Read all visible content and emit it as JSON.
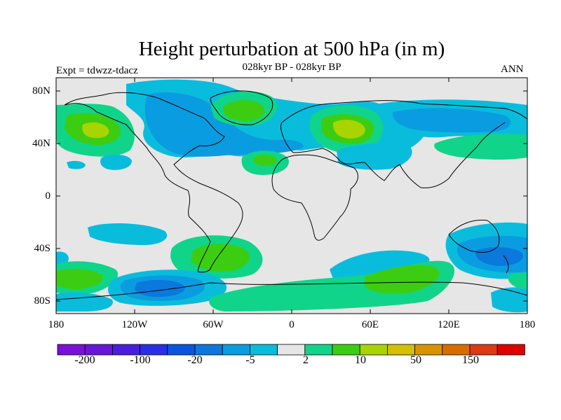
{
  "title": "Height perturbation at 500 hPa (in m)",
  "subtitle": "028kyr BP - 028kyr BP",
  "left_label": "Expt = tdwzz-tdacz",
  "right_label": "ANN",
  "lat_ticks": [
    "80N",
    "40N",
    "0",
    "40S",
    "80S"
  ],
  "lon_ticks": [
    "180",
    "120W",
    "60W",
    "0",
    "60E",
    "120E",
    "180"
  ],
  "colorbar": {
    "colors": [
      "#7a10d8",
      "#6816d8",
      "#4a1ee0",
      "#2a2ee8",
      "#0a55e0",
      "#0a78dc",
      "#0a9ce0",
      "#0abcdc",
      "#e6e6e6",
      "#10d48a",
      "#3ccd12",
      "#a8d400",
      "#d4c000",
      "#d89400",
      "#d86c00",
      "#dc3a14",
      "#e00000"
    ],
    "labels": [
      "-200",
      "-100",
      "-20",
      "-5",
      "2",
      "10",
      "50",
      "150"
    ]
  },
  "palette": {
    "background": "#e6e6e6",
    "cyan": "#0abcdc",
    "lightblue": "#0a9ce0",
    "blue": "#0a78dc",
    "teal": "#10d48a",
    "green": "#3ccd12",
    "yellowgreen": "#a8d400"
  }
}
